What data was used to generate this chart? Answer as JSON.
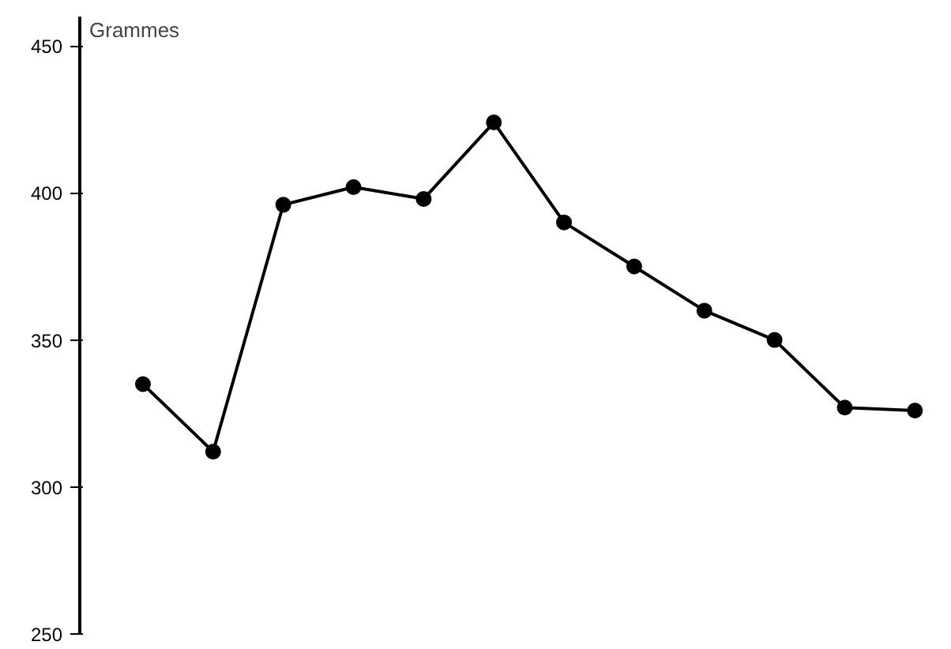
{
  "chart_data": {
    "type": "line",
    "ylabel": "Grammes",
    "categories": [
      null,
      null,
      null,
      null,
      null,
      null,
      null,
      null,
      null,
      null,
      null,
      null
    ],
    "series": [
      {
        "color": "#000000",
        "line_style": "solid",
        "values": [
          335,
          312,
          396,
          402,
          398,
          424,
          390,
          375,
          360,
          350,
          327,
          326
        ]
      }
    ],
    "ylim": [
      250,
      460
    ],
    "yticks": [
      250,
      300,
      350,
      400,
      450
    ],
    "marker": "circle",
    "grid": false,
    "legend": false,
    "tick_labels": "y"
  }
}
